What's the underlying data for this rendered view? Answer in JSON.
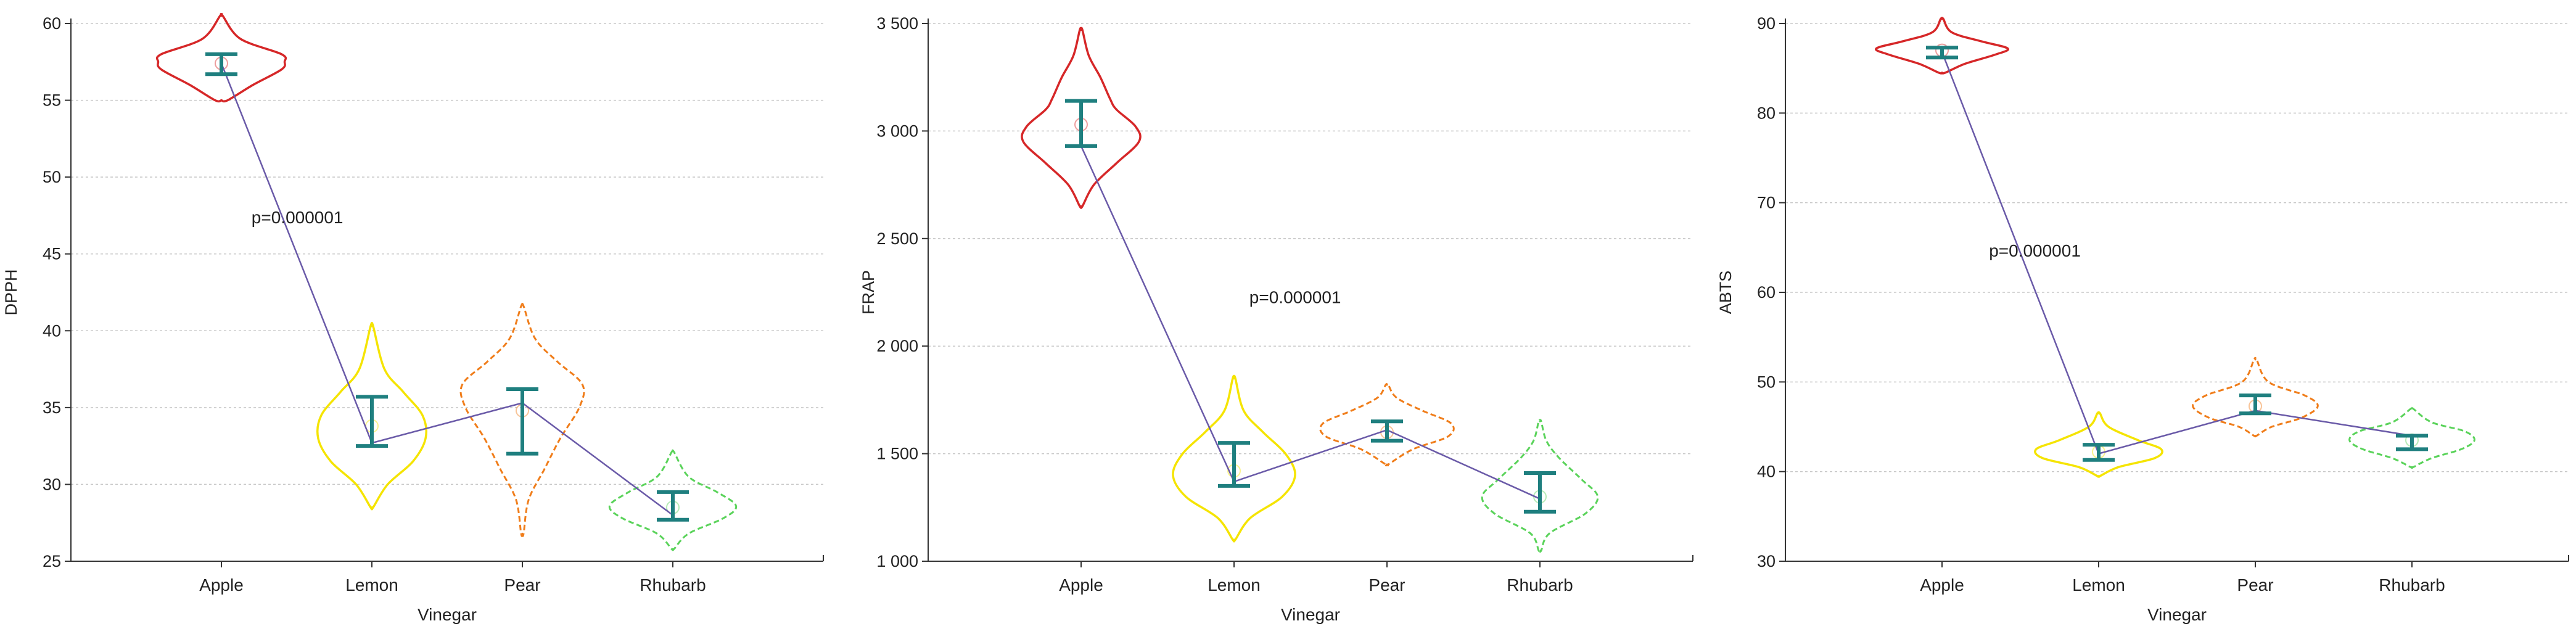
{
  "colors": {
    "Apple": "#d62728",
    "Lemon": "#f5e400",
    "Pear": "#f07d1a",
    "Rhubarb": "#5ad35a",
    "whisker": "#1f7f7f",
    "trend": "#6a5aa8",
    "grid": "#c8c8c8",
    "axis": "#333333"
  },
  "chart_data": [
    {
      "type": "violin",
      "xlabel": "Vinegar",
      "ylabel": "DPPH",
      "ylim": [
        25,
        60
      ],
      "yticks": [
        25,
        30,
        35,
        40,
        45,
        50,
        55,
        60
      ],
      "ytick_labels": [
        "25",
        "30",
        "35",
        "40",
        "45",
        "50",
        "55",
        "60"
      ],
      "grid": true,
      "categories": [
        "Apple",
        "Lemon",
        "Pear",
        "Rhubarb"
      ],
      "annotation": {
        "text": "p=0.000001",
        "at": [
          1.2,
          47.0
        ]
      },
      "groups": [
        {
          "name": "Apple",
          "min": 55.0,
          "max": 60.5,
          "mean": 57.4,
          "ci": [
            56.7,
            58.0
          ],
          "median": 57.4,
          "violin": [
            [
              55.0,
              0.1
            ],
            [
              56.0,
              0.5
            ],
            [
              57.0,
              0.95
            ],
            [
              57.5,
              1.0
            ],
            [
              58.0,
              0.95
            ],
            [
              59.0,
              0.3
            ],
            [
              60.5,
              0.02
            ]
          ]
        },
        {
          "name": "Lemon",
          "min": 28.5,
          "max": 40.3,
          "mean": 32.7,
          "ci": [
            32.5,
            35.7
          ],
          "median": 33.8,
          "violin": [
            [
              28.5,
              0.02
            ],
            [
              30.0,
              0.25
            ],
            [
              31.5,
              0.65
            ],
            [
              33.0,
              0.85
            ],
            [
              34.5,
              0.8
            ],
            [
              36.0,
              0.5
            ],
            [
              37.5,
              0.2
            ],
            [
              40.3,
              0.02
            ]
          ]
        },
        {
          "name": "Pear",
          "min": 26.8,
          "max": 41.6,
          "mean": 35.3,
          "ci": [
            32.0,
            36.2
          ],
          "median": 34.8,
          "violin": [
            [
              26.8,
              0.02
            ],
            [
              29.0,
              0.1
            ],
            [
              31.0,
              0.35
            ],
            [
              33.0,
              0.6
            ],
            [
              35.0,
              0.9
            ],
            [
              36.5,
              0.95
            ],
            [
              38.0,
              0.55
            ],
            [
              39.5,
              0.2
            ],
            [
              41.6,
              0.02
            ]
          ]
        },
        {
          "name": "Rhubarb",
          "min": 25.8,
          "max": 32.1,
          "mean": 28.0,
          "ci": [
            27.7,
            29.5
          ],
          "median": 28.5,
          "violin": [
            [
              25.8,
              0.02
            ],
            [
              26.8,
              0.25
            ],
            [
              27.8,
              0.8
            ],
            [
              28.6,
              1.0
            ],
            [
              29.5,
              0.7
            ],
            [
              30.5,
              0.25
            ],
            [
              32.1,
              0.02
            ]
          ]
        }
      ]
    },
    {
      "type": "violin",
      "xlabel": "Vinegar",
      "ylabel": "FRAP",
      "ylim": [
        1000,
        3500
      ],
      "yticks": [
        1000,
        1500,
        2000,
        2500,
        3000,
        3500
      ],
      "ytick_labels": [
        "1 000",
        "1 500",
        "2 000",
        "2 500",
        "3 000",
        "3 500"
      ],
      "grid": true,
      "categories": [
        "Apple",
        "Lemon",
        "Pear",
        "Rhubarb"
      ],
      "annotation": {
        "text": "p=0.000001",
        "at": [
          2.1,
          2200
        ]
      },
      "groups": [
        {
          "name": "Apple",
          "min": 2650,
          "max": 3470,
          "mean": 2930,
          "ci": [
            2930,
            3140
          ],
          "median": 3030,
          "violin": [
            [
              2650,
              0.02
            ],
            [
              2750,
              0.2
            ],
            [
              2850,
              0.55
            ],
            [
              2950,
              0.9
            ],
            [
              3020,
              0.85
            ],
            [
              3100,
              0.55
            ],
            [
              3150,
              0.45
            ],
            [
              3250,
              0.3
            ],
            [
              3350,
              0.12
            ],
            [
              3470,
              0.02
            ]
          ]
        },
        {
          "name": "Lemon",
          "min": 1100,
          "max": 1850,
          "mean": 1370,
          "ci": [
            1350,
            1550
          ],
          "median": 1420,
          "violin": [
            [
              1100,
              0.02
            ],
            [
              1200,
              0.25
            ],
            [
              1300,
              0.75
            ],
            [
              1400,
              0.95
            ],
            [
              1500,
              0.8
            ],
            [
              1600,
              0.45
            ],
            [
              1700,
              0.15
            ],
            [
              1850,
              0.02
            ]
          ]
        },
        {
          "name": "Pear",
          "min": 1450,
          "max": 1820,
          "mean": 1610,
          "ci": [
            1560,
            1650
          ],
          "median": 1600,
          "violin": [
            [
              1450,
              0.02
            ],
            [
              1520,
              0.4
            ],
            [
              1580,
              0.95
            ],
            [
              1640,
              1.0
            ],
            [
              1700,
              0.55
            ],
            [
              1760,
              0.15
            ],
            [
              1820,
              0.02
            ]
          ]
        },
        {
          "name": "Rhubarb",
          "min": 1050,
          "max": 1650,
          "mean": 1290,
          "ci": [
            1230,
            1410
          ],
          "median": 1300,
          "violin": [
            [
              1050,
              0.02
            ],
            [
              1130,
              0.15
            ],
            [
              1220,
              0.7
            ],
            [
              1300,
              0.9
            ],
            [
              1380,
              0.65
            ],
            [
              1480,
              0.3
            ],
            [
              1560,
              0.1
            ],
            [
              1650,
              0.02
            ]
          ]
        }
      ]
    },
    {
      "type": "violin",
      "xlabel": "Vinegar",
      "ylabel": "ABTS",
      "ylim": [
        30,
        90
      ],
      "yticks": [
        30,
        40,
        50,
        60,
        70,
        80,
        90
      ],
      "ytick_labels": [
        "30",
        "40",
        "50",
        "60",
        "70",
        "80",
        "90"
      ],
      "grid": true,
      "categories": [
        "Apple",
        "Lemon",
        "Pear",
        "Rhubarb"
      ],
      "annotation": {
        "text": "p=0.000001",
        "at": [
          1.3,
          64.0
        ]
      },
      "groups": [
        {
          "name": "Apple",
          "min": 84.5,
          "max": 90.5,
          "mean": 86.8,
          "ci": [
            86.2,
            87.3
          ],
          "median": 87.0,
          "violin": [
            [
              84.5,
              0.05
            ],
            [
              85.5,
              0.35
            ],
            [
              86.5,
              0.8
            ],
            [
              87.2,
              1.0
            ],
            [
              88.0,
              0.6
            ],
            [
              89.0,
              0.15
            ],
            [
              90.5,
              0.02
            ]
          ]
        },
        {
          "name": "Lemon",
          "min": 39.5,
          "max": 46.5,
          "mean": 42.0,
          "ci": [
            41.3,
            43.0
          ],
          "median": 42.2,
          "violin": [
            [
              39.5,
              0.02
            ],
            [
              40.5,
              0.3
            ],
            [
              41.5,
              0.85
            ],
            [
              42.5,
              0.95
            ],
            [
              43.5,
              0.6
            ],
            [
              45.0,
              0.15
            ],
            [
              46.5,
              0.02
            ]
          ]
        },
        {
          "name": "Pear",
          "min": 44.0,
          "max": 52.5,
          "mean": 46.8,
          "ci": [
            46.5,
            48.5
          ],
          "median": 47.3,
          "violin": [
            [
              44.0,
              0.02
            ],
            [
              45.0,
              0.25
            ],
            [
              46.0,
              0.7
            ],
            [
              47.3,
              0.95
            ],
            [
              48.5,
              0.75
            ],
            [
              50.0,
              0.2
            ],
            [
              52.5,
              0.02
            ]
          ]
        },
        {
          "name": "Rhubarb",
          "min": 40.5,
          "max": 47.0,
          "mean": 44.0,
          "ci": [
            42.5,
            44.0
          ],
          "median": 43.5,
          "violin": [
            [
              40.5,
              0.02
            ],
            [
              41.5,
              0.3
            ],
            [
              42.5,
              0.75
            ],
            [
              43.5,
              0.95
            ],
            [
              44.5,
              0.8
            ],
            [
              45.5,
              0.3
            ],
            [
              47.0,
              0.02
            ]
          ]
        }
      ]
    }
  ]
}
